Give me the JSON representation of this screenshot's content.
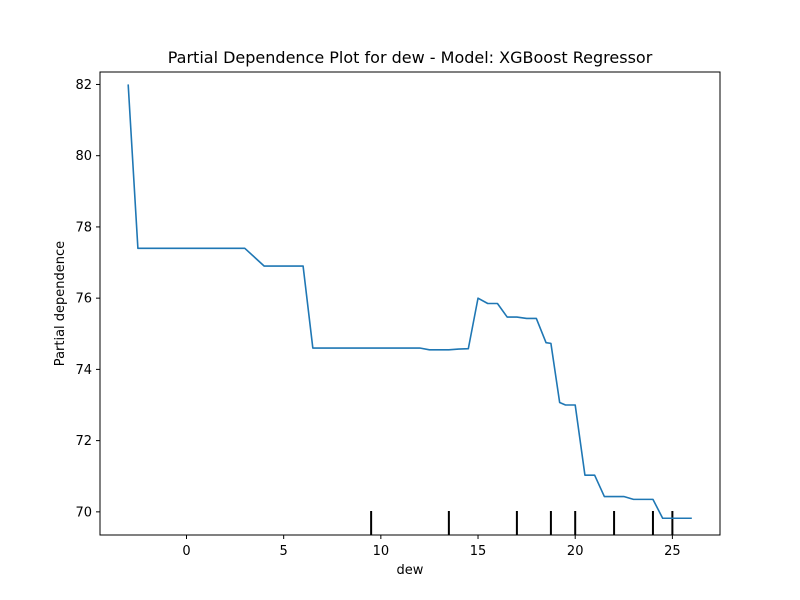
{
  "chart_data": {
    "type": "line",
    "title": "Partial Dependence Plot for dew - Model: XGBoost Regressor",
    "xlabel": "dew",
    "ylabel": "Partial dependence",
    "xlim": [
      -4.45,
      27.45
    ],
    "ylim": [
      69.35,
      82.35
    ],
    "xticks": [
      0,
      5,
      10,
      15,
      20,
      25
    ],
    "xtick_labels": [
      "0",
      "5",
      "10",
      "15",
      "20",
      "25"
    ],
    "yticks": [
      70,
      72,
      74,
      76,
      78,
      80,
      82
    ],
    "ytick_labels": [
      "70",
      "72",
      "74",
      "76",
      "78",
      "80",
      "82"
    ],
    "grid": false,
    "line_color": "#1f77b4",
    "series": [
      {
        "x": [
          -3,
          -2.5,
          3,
          4,
          6,
          6.5,
          12,
          12.5,
          13.5,
          14,
          14.5,
          15,
          15.5,
          16,
          16.5,
          17,
          17.5,
          18,
          18.5,
          18.75,
          19.2,
          19.5,
          20,
          20.5,
          21,
          21.5,
          22,
          22.5,
          23,
          24,
          24.5,
          25,
          26
        ],
        "y": [
          82,
          77.4,
          77.4,
          76.9,
          76.9,
          74.6,
          74.6,
          74.55,
          74.55,
          74.57,
          74.58,
          76.0,
          75.85,
          75.85,
          75.47,
          75.47,
          75.43,
          75.43,
          74.75,
          74.73,
          73.07,
          73.0,
          73.0,
          71.03,
          71.03,
          70.43,
          70.43,
          70.43,
          70.35,
          70.35,
          69.82,
          69.82,
          69.82
        ]
      }
    ],
    "rug": [
      9.5,
      13.5,
      17,
      18.75,
      20,
      22,
      24,
      25
    ]
  }
}
